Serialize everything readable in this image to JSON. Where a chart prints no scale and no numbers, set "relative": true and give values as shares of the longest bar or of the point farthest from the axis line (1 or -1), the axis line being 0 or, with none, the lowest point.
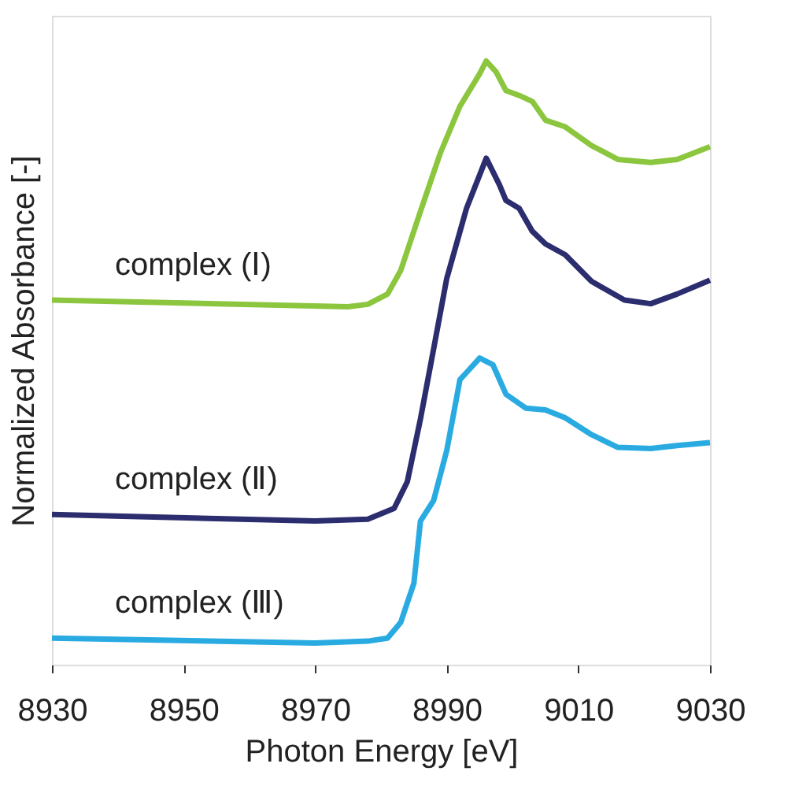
{
  "chart_data": {
    "type": "line",
    "relative": true,
    "xlabel": "Photon Energy [eV]",
    "ylabel": "Normalized Absorbance [-]",
    "xlim": [
      8930,
      9030
    ],
    "xticks": [
      8930,
      8950,
      8970,
      8990,
      9010,
      9030
    ],
    "grid": false,
    "legend": false,
    "marker": "none",
    "line_style": "solid",
    "tick_labels": "x",
    "series": [
      {
        "name": "complex (Ⅰ)",
        "color": "#8cc63f",
        "x": [
          8930,
          8975,
          8978,
          8981,
          8983,
          8986,
          8989,
          8992,
          8995,
          8996,
          8997.5,
          8999,
          9001,
          9003,
          9005,
          9008,
          9012,
          9016,
          9021,
          9025,
          9030
        ],
        "values": [
          0.604,
          0.593,
          0.597,
          0.614,
          0.653,
          0.751,
          0.847,
          0.925,
          0.979,
          1.0,
          0.982,
          0.951,
          0.943,
          0.933,
          0.902,
          0.891,
          0.86,
          0.837,
          0.832,
          0.837,
          0.858
        ]
      },
      {
        "name": "complex (Ⅱ)",
        "color": "#2b2d6e",
        "x": [
          8930,
          8970,
          8978,
          8982,
          8984,
          8986,
          8988,
          8990,
          8993,
          8996,
          8998,
          8999,
          9001,
          9003,
          9005,
          9008,
          9012,
          9017,
          9021,
          9025,
          9030
        ],
        "values": [
          0.249,
          0.238,
          0.241,
          0.259,
          0.303,
          0.407,
          0.523,
          0.64,
          0.756,
          0.839,
          0.795,
          0.769,
          0.756,
          0.718,
          0.697,
          0.679,
          0.635,
          0.604,
          0.598,
          0.614,
          0.637
        ]
      },
      {
        "name": "complex (Ⅲ)",
        "color": "#29abe2",
        "x": [
          8930,
          8970,
          8978,
          8981,
          8983,
          8985,
          8986,
          8988,
          8990,
          8992,
          8993,
          8995,
          8997,
          8999,
          9002,
          9005,
          9008,
          9012,
          9016,
          9021,
          9025,
          9030
        ],
        "values": [
          0.044,
          0.036,
          0.039,
          0.044,
          0.07,
          0.135,
          0.238,
          0.272,
          0.355,
          0.472,
          0.484,
          0.508,
          0.497,
          0.448,
          0.425,
          0.422,
          0.409,
          0.381,
          0.36,
          0.358,
          0.363,
          0.368
        ]
      }
    ]
  }
}
